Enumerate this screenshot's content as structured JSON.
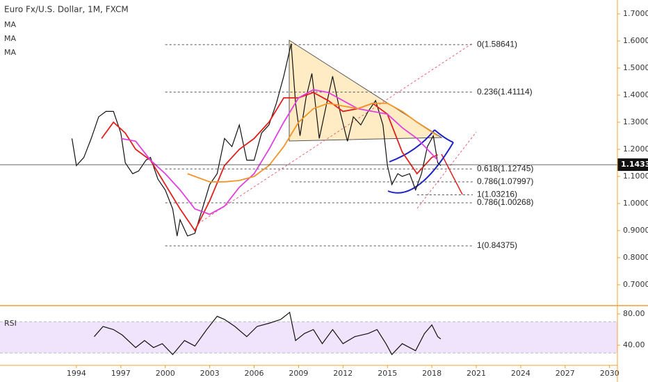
{
  "chart_data": [
    {
      "type": "line",
      "title": "Euro Fx/U.S. Dollar, 1M, FXCM",
      "xlim": [
        1988.84,
        2030.53
      ],
      "ylim": [
        0.6231,
        1.7513
      ],
      "yticks": [
        {
          "value": 0.7,
          "label": "0.70000"
        },
        {
          "value": 0.8,
          "label": "0.80000"
        },
        {
          "value": 0.9,
          "label": "0.90000"
        },
        {
          "value": 1.0,
          "label": "1.00000"
        },
        {
          "value": 1.1,
          "label": "1.10000"
        },
        {
          "value": 1.2,
          "label": "1.20000"
        },
        {
          "value": 1.3,
          "label": "1.30000"
        },
        {
          "value": 1.4,
          "label": "1.40000"
        },
        {
          "value": 1.5,
          "label": "1.50000"
        },
        {
          "value": 1.6,
          "label": "1.60000"
        },
        {
          "value": 1.7,
          "label": "1.70000"
        }
      ],
      "last_price": 1.14337,
      "series": [
        {
          "color": "#111111",
          "x": [
            1993.7,
            1994.0,
            1994.5,
            1995.0,
            1995.5,
            1996.0,
            1996.5,
            1997.0,
            1997.3,
            1997.8,
            1998.2,
            1998.7,
            1999.0,
            1999.5,
            2000.0,
            2000.5,
            2000.8,
            2001.0,
            2001.5,
            2002.0,
            2002.5,
            2003.0,
            2003.5,
            2004.0,
            2004.5,
            2005.0,
            2005.5,
            2006.0,
            2006.5,
            2007.0,
            2007.5,
            2008.0,
            2008.5,
            2008.8,
            2009.1,
            2009.5,
            2009.9,
            2010.4,
            2010.9,
            2011.3,
            2011.8,
            2012.3,
            2012.7,
            2013.2,
            2013.7,
            2014.2,
            2014.7,
            2015.0,
            2015.3,
            2015.7,
            2016.0,
            2016.5,
            2016.9,
            2017.3,
            2017.7,
            2018.1,
            2018.4,
            2018.6
          ],
          "values": [
            1.24,
            1.14,
            1.17,
            1.24,
            1.32,
            1.34,
            1.34,
            1.26,
            1.15,
            1.11,
            1.12,
            1.16,
            1.17,
            1.09,
            1.05,
            0.98,
            0.88,
            0.94,
            0.88,
            0.89,
            0.98,
            1.07,
            1.11,
            1.24,
            1.21,
            1.29,
            1.16,
            1.16,
            1.26,
            1.29,
            1.37,
            1.47,
            1.59,
            1.37,
            1.25,
            1.39,
            1.48,
            1.24,
            1.37,
            1.47,
            1.34,
            1.23,
            1.32,
            1.29,
            1.34,
            1.38,
            1.29,
            1.14,
            1.07,
            1.11,
            1.1,
            1.11,
            1.05,
            1.11,
            1.21,
            1.25,
            1.15,
            1.14
          ]
        },
        {
          "name": "MA",
          "color": "#e0201c",
          "x": [
            1995.7,
            1996.5,
            1997.3,
            1998,
            1999,
            2000,
            2001,
            2002,
            2003,
            2004,
            2005,
            2006,
            2007,
            2008,
            2009,
            2010,
            2011,
            2012,
            2013,
            2014,
            2015,
            2016,
            2017,
            2018,
            2018.4
          ],
          "values": [
            1.24,
            1.3,
            1.26,
            1.2,
            1.16,
            1.07,
            0.98,
            0.9,
            1.01,
            1.14,
            1.2,
            1.24,
            1.3,
            1.39,
            1.39,
            1.41,
            1.38,
            1.34,
            1.35,
            1.37,
            1.33,
            1.19,
            1.11,
            1.17,
            1.18
          ]
        },
        {
          "name": "MA",
          "color": "#e040e0",
          "x": [
            1997,
            1998,
            1999,
            2000,
            2001,
            2002,
            2003,
            2004,
            2005,
            2006,
            2007,
            2008,
            2009,
            2010,
            2011,
            2012,
            2013,
            2014,
            2015,
            2016,
            2017,
            2018.4
          ],
          "values": [
            1.24,
            1.23,
            1.16,
            1.11,
            1.05,
            0.98,
            0.96,
            0.99,
            1.06,
            1.11,
            1.2,
            1.3,
            1.39,
            1.42,
            1.41,
            1.38,
            1.35,
            1.34,
            1.33,
            1.28,
            1.24,
            1.16
          ]
        },
        {
          "name": "MA",
          "color": "#f0952a",
          "x": [
            2001.5,
            2002,
            2003,
            2004,
            2005,
            2006,
            2007,
            2008,
            2009,
            2010,
            2011,
            2012,
            2013,
            2014,
            2015,
            2016,
            2017,
            2018.4
          ],
          "values": [
            1.11,
            1.1,
            1.08,
            1.08,
            1.085,
            1.1,
            1.14,
            1.21,
            1.3,
            1.35,
            1.37,
            1.36,
            1.35,
            1.37,
            1.37,
            1.34,
            1.3,
            1.25
          ]
        }
      ],
      "fib_levels": {
        "values": [
          1.58641,
          1.41114,
          1.12745,
          1.07997,
          1.03216,
          1.00268,
          0.84375
        ],
        "value_labels": [
          "0(1.58641)",
          "0.236(1.41114)",
          "0.618(1.12745)",
          "0.786(1.07997)",
          "1(1.03216)",
          "0.786(1.00268)",
          "1(0.84375)"
        ],
        "start": [
          2000.0,
          2000.0,
          2000.0,
          2008.5,
          2017.0,
          2000.0,
          2000.0
        ],
        "end": 2020.76
      }
    },
    {
      "type": "line",
      "title": "RSI",
      "xlim": [
        1988.84,
        2030.53
      ],
      "ylim": [
        19.6,
        90.7
      ],
      "yticks": [
        {
          "value": 40,
          "label": "40.00"
        },
        {
          "value": 80,
          "label": "80.00"
        }
      ],
      "xticks": [
        1994,
        1997,
        2000,
        2003,
        2006,
        2009,
        2012,
        2015,
        2018,
        2021,
        2024,
        2027,
        2030
      ],
      "band": [
        30,
        70
      ],
      "series": [
        {
          "color": "#111111",
          "x": [
            1995.2,
            1995.8,
            1996.5,
            1997.1,
            1998.0,
            1998.6,
            1999.2,
            1999.8,
            2000.5,
            2001.3,
            2002.0,
            2002.8,
            2003.5,
            2004.0,
            2004.7,
            2005.5,
            2006.2,
            2007.0,
            2007.8,
            2008.4,
            2008.8,
            2009.4,
            2010.0,
            2010.6,
            2011.3,
            2012.0,
            2012.8,
            2013.7,
            2014.3,
            2014.9,
            2015.3,
            2016.0,
            2016.9,
            2017.5,
            2018.0,
            2018.4,
            2018.6
          ],
          "values": [
            51,
            64,
            60,
            53,
            37,
            46,
            37,
            42,
            28,
            46,
            39,
            60,
            77,
            73,
            64,
            51,
            64,
            68,
            73,
            82,
            46,
            55,
            60,
            42,
            60,
            42,
            51,
            55,
            60,
            42,
            28,
            42,
            33,
            55,
            66,
            51,
            48
          ]
        }
      ]
    }
  ]
}
